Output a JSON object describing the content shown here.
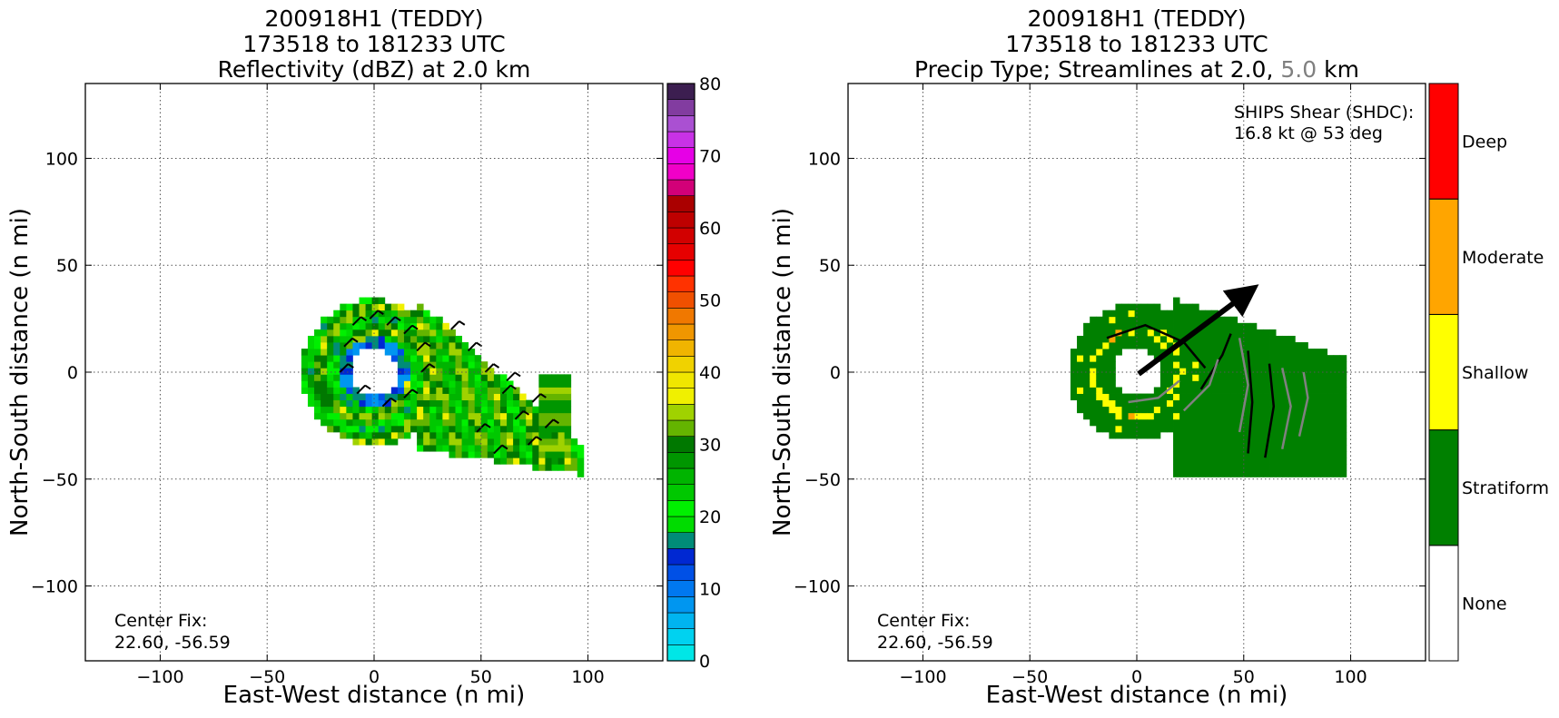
{
  "figure": {
    "left": {
      "title_line1": "200918H1 (TEDDY)",
      "title_line2": "173518 to 181233 UTC",
      "title_line3": "Reflectivity (dBZ) at 2.0 km",
      "xlabel": "East-West distance (n mi)",
      "ylabel": "North-South distance (n mi)",
      "note_line1": "Center Fix:",
      "note_line2": "22.60, -56.59"
    },
    "right": {
      "title_line1": "200918H1 (TEDDY)",
      "title_line2": "173518 to 181233 UTC",
      "title_line3_a": "Precip Type; Streamlines at 2.0,",
      "title_line3_b": "5.0",
      "title_line3_c": "km",
      "xlabel": "East-West distance (n mi)",
      "ylabel": "North-South distance (n mi)",
      "note_line1": "Center Fix:",
      "note_line2": "22.60, -56.59",
      "shear_line1": "SHIPS Shear (SHDC):",
      "shear_line2": "16.8 kt @ 53 deg"
    }
  },
  "chart_data": [
    {
      "type": "heatmap",
      "title": "200918H1 (TEDDY) 173518 to 181233 UTC Reflectivity (dBZ) at 2.0 km",
      "xlabel": "East-West distance (n mi)",
      "ylabel": "North-South distance (n mi)",
      "xlim": [
        -135,
        135
      ],
      "ylim": [
        -135,
        135
      ],
      "xticks": [
        -100,
        -50,
        0,
        50,
        100
      ],
      "yticks": [
        -100,
        -50,
        0,
        50,
        100
      ],
      "xtick_labels": [
        "−100",
        "−50",
        "0",
        "50",
        "100"
      ],
      "ytick_labels": [
        "−100",
        "−50",
        "0",
        "50",
        "100"
      ],
      "grid": true,
      "colorbar": {
        "label_values": [
          "80",
          "70",
          "60",
          "50",
          "40",
          "30",
          "20",
          "10",
          "0"
        ],
        "range": [
          0,
          80
        ],
        "step": 2.5,
        "colors": [
          "#00e6e6",
          "#00d2f0",
          "#00b4f0",
          "#0096f0",
          "#0078f0",
          "#0050e6",
          "#0028d2",
          "#008c78",
          "#00dc00",
          "#00f000",
          "#00c800",
          "#00b400",
          "#009600",
          "#007800",
          "#64b400",
          "#a0d200",
          "#f0f000",
          "#f0e600",
          "#f0d200",
          "#f0b400",
          "#f09600",
          "#f07800",
          "#f05000",
          "#ff3200",
          "#ff0000",
          "#e60000",
          "#d20000",
          "#be0000",
          "#aa0000",
          "#d20078",
          "#f000c8",
          "#e600e6",
          "#c832e6",
          "#aa50d2",
          "#823ca0",
          "#3c1e50"
        ]
      },
      "storm_features": [
        {
          "name": "inner ring",
          "center": [
            0,
            0
          ],
          "radius": 14
        },
        {
          "name": "eyewall band",
          "center": [
            10,
            5
          ],
          "radius": 28
        }
      ],
      "annotation": "Center Fix: 22.60, -56.59"
    },
    {
      "type": "heatmap",
      "title": "200918H1 (TEDDY) 173518 to 181233 UTC Precip Type; Streamlines at 2.0, 5.0 km",
      "xlabel": "East-West distance (n mi)",
      "ylabel": "North-South distance (n mi)",
      "xlim": [
        -135,
        135
      ],
      "ylim": [
        -135,
        135
      ],
      "xticks": [
        -100,
        -50,
        0,
        50,
        100
      ],
      "yticks": [
        -100,
        -50,
        0,
        50,
        100
      ],
      "xtick_labels": [
        "−100",
        "−50",
        "0",
        "50",
        "100"
      ],
      "ytick_labels": [
        "−100",
        "−50",
        "0",
        "50",
        "100"
      ],
      "grid": true,
      "categories": [
        "None",
        "Stratiform",
        "Shallow",
        "Moderate",
        "Deep"
      ],
      "category_colors": [
        "#ffffff",
        "#008000",
        "#ffff00",
        "#ffa500",
        "#ff0000"
      ],
      "streamline_levels_km": [
        2.0,
        5.0
      ],
      "streamline_colors": [
        "#000000",
        "#808080"
      ],
      "shear": {
        "magnitude_kt": 16.8,
        "direction_deg": 53
      },
      "annotation": "Center Fix: 22.60, -56.59"
    }
  ]
}
